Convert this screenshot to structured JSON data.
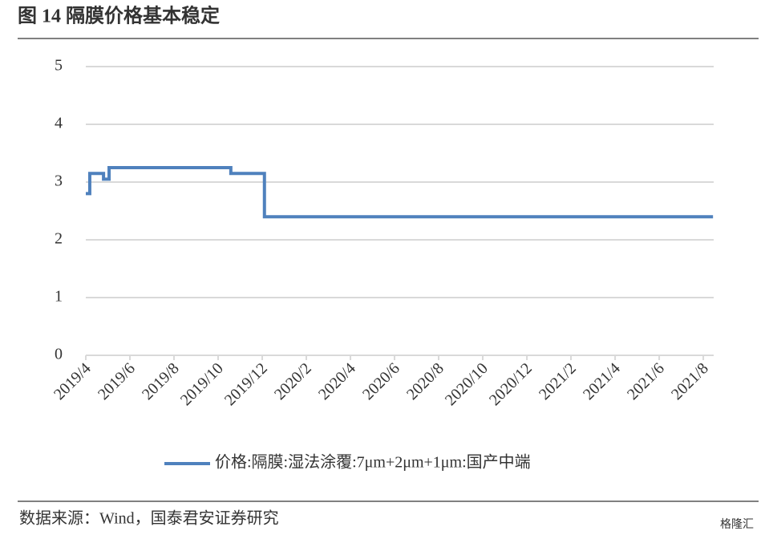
{
  "chart_data": {
    "type": "line",
    "title": "图 14 隔膜价格基本稳定",
    "x": [
      2019.25,
      2019.265,
      2019.317,
      2019.338,
      2019.798,
      2019.925,
      2021.62
    ],
    "series": [
      {
        "name": "价格:隔膜:湿法涂覆:7μm+2μm+1μm:国产中端",
        "color": "#4f81bd",
        "values": [
          2.8,
          3.15,
          3.05,
          3.25,
          3.15,
          2.4,
          2.4
        ]
      }
    ],
    "step": "post",
    "xlim": [
      2019.25,
      2021.6225
    ],
    "xticks": [
      {
        "value": 2019.25,
        "label": "2019/4"
      },
      {
        "value": 2019.4167,
        "label": "2019/6"
      },
      {
        "value": 2019.5833,
        "label": "2019/8"
      },
      {
        "value": 2019.75,
        "label": "2019/10"
      },
      {
        "value": 2019.9167,
        "label": "2019/12"
      },
      {
        "value": 2020.0833,
        "label": "2020/2"
      },
      {
        "value": 2020.25,
        "label": "2020/4"
      },
      {
        "value": 2020.4167,
        "label": "2020/6"
      },
      {
        "value": 2020.5833,
        "label": "2020/8"
      },
      {
        "value": 2020.75,
        "label": "2020/10"
      },
      {
        "value": 2020.9167,
        "label": "2020/12"
      },
      {
        "value": 2021.0833,
        "label": "2021/2"
      },
      {
        "value": 2021.25,
        "label": "2021/4"
      },
      {
        "value": 2021.4167,
        "label": "2021/6"
      },
      {
        "value": 2021.5833,
        "label": "2021/8"
      }
    ],
    "ylim": [
      0,
      5
    ],
    "yticks": [
      0,
      1,
      2,
      3,
      4,
      5
    ],
    "grid": true,
    "legend": "bottom",
    "source": "数据来源：Wind，国泰君安证券研究",
    "watermark": "格隆汇"
  }
}
